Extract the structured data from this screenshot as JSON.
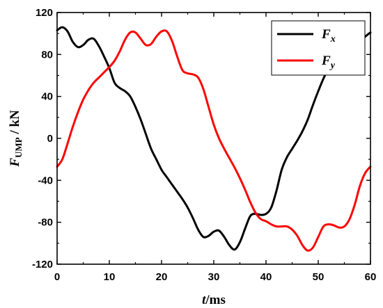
{
  "chart_data": {
    "type": "line",
    "xlabel": {
      "var": "t",
      "unit": "/ms"
    },
    "ylabel": {
      "var": "F",
      "sub": "UMP",
      "unit": " / kN"
    },
    "xlim": [
      0,
      60
    ],
    "ylim": [
      -120,
      120
    ],
    "xticks": [
      0,
      10,
      20,
      30,
      40,
      50,
      60
    ],
    "yticks": [
      -120,
      -80,
      -40,
      0,
      40,
      80,
      120
    ],
    "grid": false,
    "legend": "top-right",
    "series": [
      {
        "name": "F",
        "name_sub": "x",
        "color": "#000000",
        "x": [
          0,
          1,
          2,
          3,
          4,
          5,
          6,
          7,
          8,
          9,
          10,
          11,
          12,
          13,
          14,
          15,
          16,
          17,
          18,
          19,
          20,
          21,
          22,
          23,
          24,
          25,
          26,
          27,
          28,
          29,
          30,
          31,
          32,
          33,
          34,
          35,
          36,
          37,
          38,
          39,
          40,
          41,
          42,
          43,
          44,
          45,
          46,
          47,
          48,
          49,
          50,
          51,
          52,
          53,
          54,
          55,
          56,
          57,
          58,
          59,
          60
        ],
        "y": [
          103,
          106,
          102,
          92,
          87,
          89,
          94,
          95,
          88,
          78,
          67,
          53,
          48,
          45,
          40,
          30,
          18,
          4,
          -10,
          -20,
          -30,
          -37,
          -44,
          -51,
          -58,
          -66,
          -76,
          -87,
          -94,
          -93,
          -89,
          -88,
          -94,
          -102,
          -106,
          -99,
          -86,
          -74,
          -72,
          -73,
          -72,
          -66,
          -50,
          -30,
          -18,
          -10,
          -2,
          7,
          18,
          32,
          45,
          57,
          67,
          73,
          75,
          76,
          79,
          85,
          92,
          97,
          101
        ]
      },
      {
        "name": "F",
        "name_sub": "y",
        "color": "#ff0000",
        "x": [
          0,
          1,
          2,
          3,
          4,
          5,
          6,
          7,
          8,
          9,
          10,
          11,
          12,
          13,
          14,
          15,
          16,
          17,
          18,
          19,
          20,
          21,
          22,
          23,
          24,
          25,
          26,
          27,
          28,
          29,
          30,
          31,
          32,
          33,
          34,
          35,
          36,
          37,
          38,
          39,
          40,
          41,
          42,
          43,
          44,
          45,
          46,
          47,
          48,
          49,
          50,
          51,
          52,
          53,
          54,
          55,
          56,
          57,
          58,
          59,
          60
        ],
        "y": [
          -27,
          -20,
          -5,
          11,
          25,
          37,
          46,
          53,
          58,
          63,
          68,
          74,
          83,
          94,
          101,
          101,
          95,
          89,
          90,
          97,
          102,
          102,
          93,
          78,
          65,
          62,
          61,
          58,
          47,
          30,
          13,
          0,
          -10,
          -19,
          -28,
          -38,
          -49,
          -61,
          -71,
          -77,
          -79,
          -82,
          -84,
          -84,
          -84,
          -87,
          -93,
          -102,
          -107,
          -104,
          -94,
          -84,
          -82,
          -83,
          -85,
          -84,
          -77,
          -63,
          -45,
          -33,
          -27
        ]
      }
    ]
  }
}
